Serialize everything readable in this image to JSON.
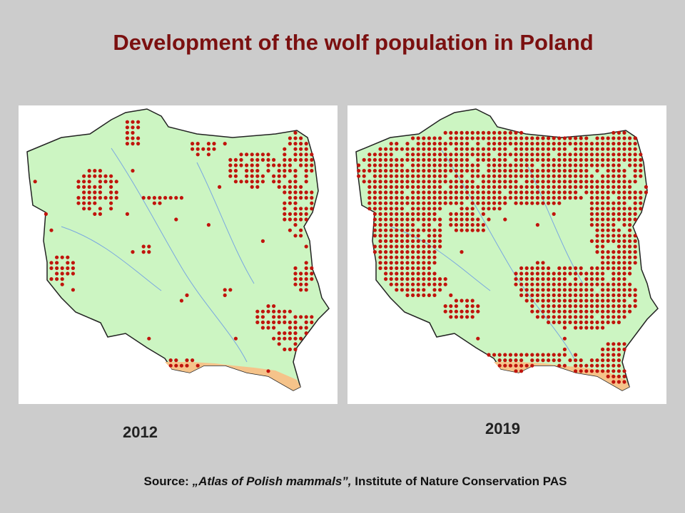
{
  "title": "Development of the wolf population in Poland",
  "maps": [
    {
      "label": "2012"
    },
    {
      "label": "2019"
    }
  ],
  "source": {
    "prefix": "Source:",
    "work": "„Atlas of Polish mammals”,",
    "publisher": "Institute of Nature Conservation PAS"
  }
}
